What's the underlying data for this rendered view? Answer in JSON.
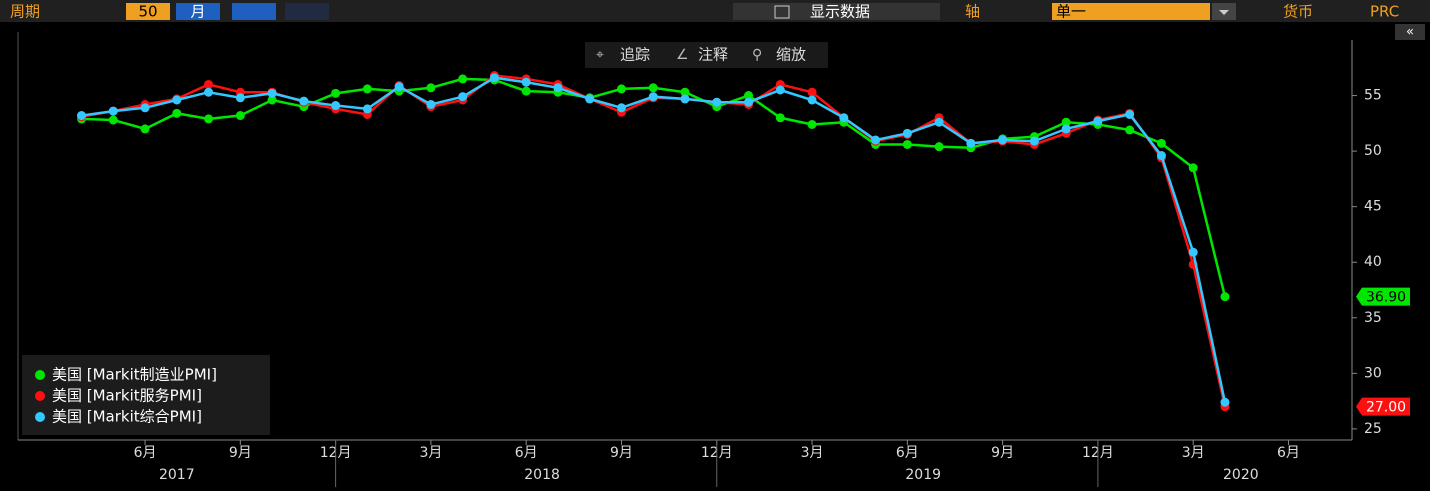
{
  "toolbar": {
    "period_label": "周期",
    "period_count": 50,
    "period_unit": "月",
    "display_data": "显示数据",
    "axis_label": "轴",
    "axis_value": "单一",
    "currency_label": "货币",
    "currency_value": "PRC"
  },
  "chart_tools": {
    "track": "追踪",
    "annotate": "注释",
    "zoom": "缩放"
  },
  "chart_data": {
    "type": "line",
    "x": [
      "2017-04",
      "2017-05",
      "2017-06",
      "2017-07",
      "2017-08",
      "2017-09",
      "2017-10",
      "2017-11",
      "2017-12",
      "2018-01",
      "2018-02",
      "2018-03",
      "2018-04",
      "2018-05",
      "2018-06",
      "2018-07",
      "2018-08",
      "2018-09",
      "2018-10",
      "2018-11",
      "2018-12",
      "2019-01",
      "2019-02",
      "2019-03",
      "2019-04",
      "2019-05",
      "2019-06",
      "2019-07",
      "2019-08",
      "2019-09",
      "2019-10",
      "2019-11",
      "2019-12",
      "2020-01",
      "2020-02",
      "2020-03",
      "2020-04"
    ],
    "xlim": [
      "2017-02",
      "2020-08"
    ],
    "xticks": [
      {
        "value": "2017-06",
        "label": "6月"
      },
      {
        "value": "2017-09",
        "label": "9月"
      },
      {
        "value": "2017-12",
        "label": "12月"
      },
      {
        "value": "2018-03",
        "label": "3月"
      },
      {
        "value": "2018-06",
        "label": "6月"
      },
      {
        "value": "2018-09",
        "label": "9月"
      },
      {
        "value": "2018-12",
        "label": "12月"
      },
      {
        "value": "2019-03",
        "label": "3月"
      },
      {
        "value": "2019-06",
        "label": "6月"
      },
      {
        "value": "2019-09",
        "label": "9月"
      },
      {
        "value": "2019-12",
        "label": "12月"
      },
      {
        "value": "2020-03",
        "label": "3月"
      },
      {
        "value": "2020-06",
        "label": "6月"
      }
    ],
    "year_labels": [
      "2017",
      "2018",
      "2019",
      "2020"
    ],
    "ylim": [
      24,
      60
    ],
    "yticks": [
      25,
      30,
      35,
      40,
      45,
      50,
      55
    ],
    "series": [
      {
        "name": "美国 [Markit制造业PMI]",
        "color": "#00e600",
        "values": [
          52.9,
          52.8,
          52.0,
          53.4,
          52.9,
          53.2,
          54.6,
          54.0,
          55.2,
          55.6,
          55.4,
          55.7,
          56.5,
          56.4,
          55.4,
          55.3,
          54.8,
          55.6,
          55.7,
          55.3,
          54.0,
          55.0,
          53.0,
          52.4,
          52.6,
          50.6,
          50.6,
          50.4,
          50.3,
          51.1,
          51.3,
          52.6,
          52.4,
          51.9,
          50.7,
          48.5,
          36.9
        ],
        "value_labels": [
          null,
          null,
          null,
          null,
          null,
          null,
          null,
          null,
          null,
          null,
          null,
          null,
          null,
          null,
          null,
          null,
          null,
          null,
          null,
          null,
          null,
          null,
          null,
          null,
          null,
          null,
          null,
          null,
          null,
          null,
          null,
          null,
          null,
          null,
          null,
          null,
          "36.90"
        ]
      },
      {
        "name": "美国 [Markit服务PMI]",
        "color": "#ff1010",
        "values": [
          53.1,
          53.6,
          54.2,
          54.7,
          56.0,
          55.3,
          55.3,
          54.4,
          53.8,
          53.3,
          55.9,
          54.0,
          54.6,
          56.8,
          56.5,
          56.0,
          54.7,
          53.5,
          54.8,
          54.7,
          54.4,
          54.2,
          56.0,
          55.3,
          53.0,
          50.9,
          51.5,
          53.0,
          50.7,
          50.9,
          50.6,
          51.6,
          52.8,
          53.4,
          49.4,
          39.8,
          27.0
        ],
        "value_labels": [
          null,
          null,
          null,
          null,
          null,
          null,
          null,
          null,
          null,
          null,
          null,
          null,
          null,
          null,
          null,
          null,
          null,
          null,
          null,
          null,
          null,
          null,
          null,
          null,
          null,
          null,
          null,
          null,
          null,
          null,
          null,
          null,
          null,
          null,
          null,
          null,
          "27.00"
        ]
      },
      {
        "name": "美国 [Markit综合PMI]",
        "color": "#33c8ff",
        "values": [
          53.2,
          53.6,
          53.9,
          54.6,
          55.3,
          54.8,
          55.2,
          54.5,
          54.1,
          53.8,
          55.8,
          54.2,
          54.9,
          56.6,
          56.2,
          55.7,
          54.7,
          53.9,
          54.9,
          54.7,
          54.4,
          54.4,
          55.5,
          54.6,
          53.0,
          51.0,
          51.6,
          52.6,
          50.7,
          51.0,
          50.9,
          52.0,
          52.7,
          53.3,
          49.6,
          40.9,
          27.4
        ]
      }
    ]
  }
}
